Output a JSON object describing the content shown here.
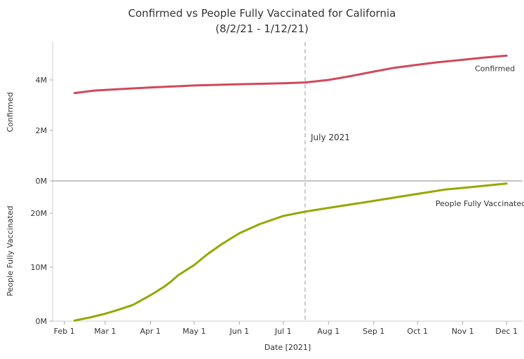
{
  "chart_data": {
    "type": "line",
    "title": "Confirmed vs People Fully Vaccinated for California",
    "subtitle": "(8/2/21 - 1/12/21)",
    "xlabel": "Date [2021]",
    "x_ticks": [
      "Feb 1",
      "Mar 1",
      "Apr 1",
      "May 1",
      "Jun 1",
      "Jul 1",
      "Aug 1",
      "Sep 1",
      "Oct 1",
      "Nov 1",
      "Dec 1"
    ],
    "x_tick_dates": [
      "2021-02-01",
      "2021-03-01",
      "2021-04-01",
      "2021-05-01",
      "2021-06-01",
      "2021-07-01",
      "2021-08-01",
      "2021-09-01",
      "2021-10-01",
      "2021-11-01",
      "2021-12-01"
    ],
    "xlim": [
      "2021-01-24",
      "2021-12-12"
    ],
    "annotation": {
      "label": "July 2021",
      "date": "2021-07-16"
    },
    "panels": [
      {
        "ylabel": "Confirmed",
        "ylim": [
          0,
          5500000
        ],
        "y_ticks": [
          0,
          2000000,
          4000000
        ],
        "y_tick_labels": [
          "0M",
          "2M",
          "4M"
        ],
        "series_name": "Confirmed",
        "color": "#d1485a",
        "points": [
          {
            "date": "2021-02-08",
            "value": 3480000
          },
          {
            "date": "2021-02-22",
            "value": 3580000
          },
          {
            "date": "2021-03-15",
            "value": 3650000
          },
          {
            "date": "2021-04-01",
            "value": 3700000
          },
          {
            "date": "2021-05-01",
            "value": 3780000
          },
          {
            "date": "2021-06-01",
            "value": 3830000
          },
          {
            "date": "2021-07-01",
            "value": 3870000
          },
          {
            "date": "2021-07-16",
            "value": 3900000
          },
          {
            "date": "2021-08-01",
            "value": 4000000
          },
          {
            "date": "2021-08-15",
            "value": 4140000
          },
          {
            "date": "2021-09-01",
            "value": 4330000
          },
          {
            "date": "2021-09-15",
            "value": 4480000
          },
          {
            "date": "2021-10-01",
            "value": 4600000
          },
          {
            "date": "2021-10-15",
            "value": 4700000
          },
          {
            "date": "2021-11-01",
            "value": 4800000
          },
          {
            "date": "2021-11-15",
            "value": 4880000
          },
          {
            "date": "2021-12-01",
            "value": 4960000
          }
        ]
      },
      {
        "ylabel": "People Fully Vaccinated",
        "ylim": [
          0,
          26000000
        ],
        "y_ticks": [
          0,
          10000000,
          20000000
        ],
        "y_tick_labels": [
          "0M",
          "10M",
          "20M"
        ],
        "series_name": "People Fully Vaccinated",
        "color": "#94a800",
        "points": [
          {
            "date": "2021-02-08",
            "value": 100000
          },
          {
            "date": "2021-02-18",
            "value": 650000
          },
          {
            "date": "2021-02-28",
            "value": 1300000
          },
          {
            "date": "2021-03-10",
            "value": 2100000
          },
          {
            "date": "2021-03-20",
            "value": 3000000
          },
          {
            "date": "2021-04-01",
            "value": 4800000
          },
          {
            "date": "2021-04-10",
            "value": 6300000
          },
          {
            "date": "2021-04-15",
            "value": 7300000
          },
          {
            "date": "2021-04-20",
            "value": 8500000
          },
          {
            "date": "2021-05-01",
            "value": 10400000
          },
          {
            "date": "2021-05-10",
            "value": 12400000
          },
          {
            "date": "2021-05-20",
            "value": 14300000
          },
          {
            "date": "2021-06-01",
            "value": 16300000
          },
          {
            "date": "2021-06-15",
            "value": 18000000
          },
          {
            "date": "2021-07-01",
            "value": 19500000
          },
          {
            "date": "2021-07-16",
            "value": 20300000
          },
          {
            "date": "2021-08-01",
            "value": 21000000
          },
          {
            "date": "2021-09-01",
            "value": 22300000
          },
          {
            "date": "2021-10-01",
            "value": 23600000
          },
          {
            "date": "2021-10-20",
            "value": 24400000
          },
          {
            "date": "2021-11-01",
            "value": 24700000
          },
          {
            "date": "2021-12-01",
            "value": 25500000
          }
        ]
      }
    ]
  }
}
